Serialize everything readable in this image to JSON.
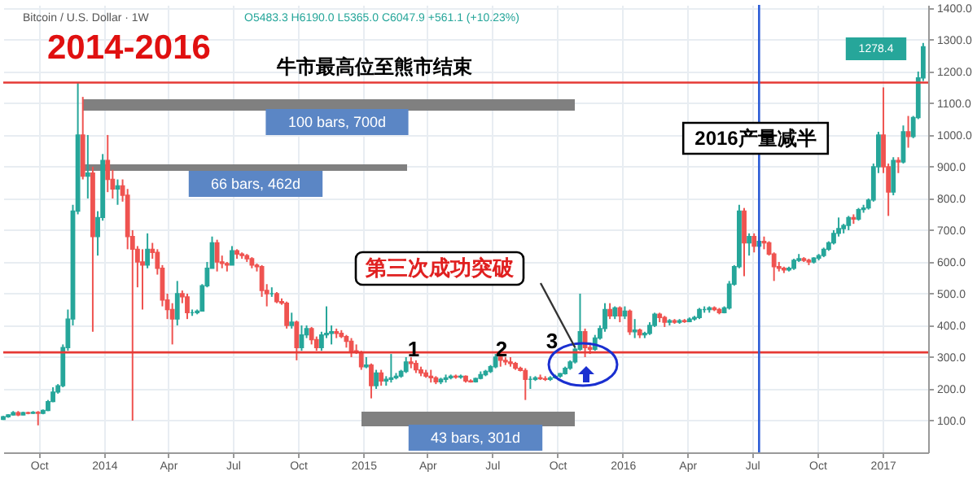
{
  "chart_data": {
    "type": "candlestick",
    "title": "2014-2016",
    "subtitle": "Bitcoin / U.S. Dollar · 1W",
    "colors": [
      "#26a69a",
      "#26a69a",
      "#26a69a",
      "#ef5350",
      "#26a69a",
      "#ef5350",
      "#26a69a",
      "#ef5350",
      "#26a69a",
      "#26a69a",
      "#26a69a",
      "#26a69a",
      "#26a69a",
      "#26a69a",
      "#26a69a",
      "#26a69a",
      "#ef5350",
      "#26a69a",
      "#ef5350",
      "#26a69a",
      "#26a69a",
      "#ef5350",
      "#ef5350",
      "#26a69a",
      "#ef5350",
      "#ef5350",
      "#ef5350",
      "#ef5350",
      "#ef5350",
      "#26a69a",
      "#ef5350",
      "#ef5350",
      "#ef5350",
      "#ef5350",
      "#ef5350",
      "#26a69a",
      "#ef5350",
      "#ef5350",
      "#26a69a",
      "#26a69a",
      "#26a69a",
      "#26a69a",
      "#26a69a",
      "#ef5350",
      "#ef5350",
      "#ef5350",
      "#26a69a",
      "#ef5350",
      "#ef5350",
      "#ef5350",
      "#ef5350",
      "#ef5350",
      "#ef5350",
      "#ef5350",
      "#26a69a",
      "#ef5350",
      "#ef5350",
      "#ef5350",
      "#26a69a",
      "#ef5350",
      "#26a69a",
      "#26a69a",
      "#ef5350",
      "#ef5350",
      "#26a69a",
      "#26a69a",
      "#26a69a",
      "#ef5350",
      "#ef5350",
      "#ef5350",
      "#ef5350",
      "#ef5350",
      "#ef5350",
      "#26a69a",
      "#ef5350",
      "#26a69a",
      "#ef5350",
      "#26a69a",
      "#26a69a",
      "#26a69a",
      "#26a69a",
      "#26a69a",
      "#ef5350",
      "#ef5350",
      "#ef5350",
      "#ef5350",
      "#ef5350",
      "#ef5350",
      "#26a69a",
      "#26a69a",
      "#26a69a",
      "#ef5350",
      "#26a69a",
      "#ef5350",
      "#ef5350",
      "#26a69a",
      "#26a69a",
      "#26a69a",
      "#26a69a",
      "#26a69a",
      "#ef5350",
      "#ef5350",
      "#ef5350",
      "#ef5350",
      "#ef5350",
      "#ef5350",
      "#26a69a",
      "#26a69a",
      "#ef5350",
      "#ef5350",
      "#26a69a",
      "#26a69a",
      "#26a69a",
      "#26a69a",
      "#26a69a",
      "#26a69a",
      "#26a69a",
      "#ef5350",
      "#ef5350",
      "#26a69a",
      "#26a69a",
      "#26a69a",
      "#ef5350",
      "#26a69a",
      "#ef5350",
      "#26a69a",
      "#ef5350",
      "#26a69a",
      "#ef5350",
      "#26a69a",
      "#26a69a",
      "#26a69a",
      "#ef5350",
      "#ef5350",
      "#26a69a",
      "#ef5350",
      "#26a69a",
      "#ef5350",
      "#26a69a",
      "#26a69a",
      "#26a69a",
      "#26a69a",
      "#26a69a",
      "#ef5350",
      "#ef5350",
      "#26a69a",
      "#26a69a",
      "#26a69a",
      "#26a69a",
      "#ef5350",
      "#26a69a",
      "#ef5350",
      "#26a69a",
      "#ef5350",
      "#ef5350",
      "#ef5350",
      "#ef5350",
      "#ef5350",
      "#26a69a",
      "#26a69a",
      "#26a69a",
      "#ef5350",
      "#ef5350",
      "#26a69a",
      "#26a69a",
      "#26a69a",
      "#26a69a",
      "#26a69a",
      "#26a69a",
      "#26a69a",
      "#26a69a",
      "#ef5350",
      "#26a69a",
      "#26a69a",
      "#26a69a",
      "#26a69a",
      "#26a69a",
      "#ef5350",
      "#ef5350",
      "#26a69a",
      "#ef5350",
      "#26a69a",
      "#ef5350",
      "#26a69a",
      "#26a69a",
      "#26a69a"
    ],
    "x": [
      "2013-08-12",
      "2013-08-19",
      "2013-08-26",
      "2013-09-02",
      "2013-09-09",
      "2013-09-16",
      "2013-09-23",
      "2013-09-30",
      "2013-10-07",
      "2013-10-14",
      "2013-10-21",
      "2013-10-28",
      "2013-11-04",
      "2013-11-11",
      "2013-11-18",
      "2013-11-25",
      "2013-12-02",
      "2013-12-09",
      "2013-12-16",
      "2013-12-23",
      "2013-12-30",
      "2014-01-06",
      "2014-01-13",
      "2014-01-20",
      "2014-01-27",
      "2014-02-03",
      "2014-02-10",
      "2014-02-17",
      "2014-02-24",
      "2014-03-03",
      "2014-03-10",
      "2014-03-17",
      "2014-03-24",
      "2014-03-31",
      "2014-04-07",
      "2014-04-14",
      "2014-04-21",
      "2014-04-28",
      "2014-05-05",
      "2014-05-12",
      "2014-05-19",
      "2014-05-26",
      "2014-06-02",
      "2014-06-09",
      "2014-06-16",
      "2014-06-23",
      "2014-06-30",
      "2014-07-07",
      "2014-07-14",
      "2014-07-21",
      "2014-07-28",
      "2014-08-04",
      "2014-08-11",
      "2014-08-18",
      "2014-08-25",
      "2014-09-01",
      "2014-09-08",
      "2014-09-15",
      "2014-09-22",
      "2014-09-29",
      "2014-10-06",
      "2014-10-13",
      "2014-10-20",
      "2014-10-27",
      "2014-11-03",
      "2014-11-10",
      "2014-11-17",
      "2014-11-24",
      "2014-12-01",
      "2014-12-08",
      "2014-12-15",
      "2014-12-22",
      "2014-12-29",
      "2015-01-05",
      "2015-01-12",
      "2015-01-19",
      "2015-01-26",
      "2015-02-02",
      "2015-02-09",
      "2015-02-16",
      "2015-02-23",
      "2015-03-02",
      "2015-03-09",
      "2015-03-16",
      "2015-03-23",
      "2015-03-30",
      "2015-04-06",
      "2015-04-13",
      "2015-04-20",
      "2015-04-27",
      "2015-05-04",
      "2015-05-11",
      "2015-05-18",
      "2015-05-25",
      "2015-06-01",
      "2015-06-08",
      "2015-06-15",
      "2015-06-22",
      "2015-06-29",
      "2015-07-06",
      "2015-07-13",
      "2015-07-20",
      "2015-07-27",
      "2015-08-03",
      "2015-08-10",
      "2015-08-17",
      "2015-08-24",
      "2015-08-31",
      "2015-09-07",
      "2015-09-14",
      "2015-09-21",
      "2015-09-28",
      "2015-10-05",
      "2015-10-12",
      "2015-10-19",
      "2015-10-26",
      "2015-11-02",
      "2015-11-09",
      "2015-11-16",
      "2015-11-23",
      "2015-11-30",
      "2015-12-07",
      "2015-12-14",
      "2015-12-21",
      "2015-12-28",
      "2016-01-04",
      "2016-01-11",
      "2016-01-18",
      "2016-01-25",
      "2016-02-01",
      "2016-02-08",
      "2016-02-15",
      "2016-02-22",
      "2016-02-29",
      "2016-03-07",
      "2016-03-14",
      "2016-03-21",
      "2016-03-28",
      "2016-04-04",
      "2016-04-11",
      "2016-04-18",
      "2016-04-25",
      "2016-05-02",
      "2016-05-09",
      "2016-05-16",
      "2016-05-23",
      "2016-05-30",
      "2016-06-06",
      "2016-06-13",
      "2016-06-20",
      "2016-06-27",
      "2016-07-04",
      "2016-07-11",
      "2016-07-18",
      "2016-07-25",
      "2016-08-01",
      "2016-08-08",
      "2016-08-15",
      "2016-08-22",
      "2016-08-29",
      "2016-09-05",
      "2016-09-12",
      "2016-09-19",
      "2016-09-26",
      "2016-10-03",
      "2016-10-10",
      "2016-10-17",
      "2016-10-24",
      "2016-10-31",
      "2016-11-07",
      "2016-11-14",
      "2016-11-21",
      "2016-11-28",
      "2016-12-05",
      "2016-12-12",
      "2016-12-19",
      "2016-12-26",
      "2017-01-02",
      "2017-01-09",
      "2017-01-16",
      "2017-01-23",
      "2017-01-30",
      "2017-02-06",
      "2017-02-13",
      "2017-02-20",
      "2017-02-27"
    ],
    "ohlc": [
      [
        104,
        115,
        102,
        112
      ],
      [
        112,
        120,
        109,
        118
      ],
      [
        118,
        130,
        116,
        125
      ],
      [
        125,
        130,
        114,
        118
      ],
      [
        118,
        128,
        117,
        125
      ],
      [
        125,
        128,
        120,
        123
      ],
      [
        123,
        130,
        121,
        126
      ],
      [
        126,
        130,
        85,
        123
      ],
      [
        123,
        135,
        120,
        132
      ],
      [
        132,
        165,
        130,
        160
      ],
      [
        160,
        205,
        158,
        190
      ],
      [
        190,
        215,
        185,
        210
      ],
      [
        210,
        340,
        205,
        330
      ],
      [
        330,
        450,
        320,
        420
      ],
      [
        420,
        780,
        400,
        760
      ],
      [
        760,
        1165,
        750,
        1000
      ],
      [
        1000,
        1120,
        860,
        870
      ],
      [
        870,
        1000,
        800,
        880
      ],
      [
        880,
        900,
        380,
        680
      ],
      [
        680,
        760,
        620,
        740
      ],
      [
        740,
        940,
        730,
        920
      ],
      [
        920,
        1000,
        820,
        860
      ],
      [
        860,
        890,
        800,
        830
      ],
      [
        830,
        860,
        780,
        840
      ],
      [
        840,
        860,
        790,
        810
      ],
      [
        810,
        830,
        640,
        680
      ],
      [
        680,
        700,
        100,
        640
      ],
      [
        640,
        650,
        520,
        600
      ],
      [
        600,
        640,
        450,
        590
      ],
      [
        590,
        690,
        580,
        640
      ],
      [
        640,
        660,
        610,
        630
      ],
      [
        630,
        640,
        560,
        580
      ],
      [
        580,
        590,
        460,
        480
      ],
      [
        480,
        500,
        420,
        450
      ],
      [
        450,
        470,
        340,
        420
      ],
      [
        420,
        540,
        400,
        500
      ],
      [
        500,
        510,
        470,
        490
      ],
      [
        490,
        500,
        420,
        440
      ],
      [
        440,
        450,
        430,
        440
      ],
      [
        440,
        450,
        435,
        445
      ],
      [
        445,
        530,
        445,
        525
      ],
      [
        525,
        600,
        520,
        580
      ],
      [
        580,
        680,
        580,
        660
      ],
      [
        660,
        670,
        570,
        600
      ],
      [
        600,
        620,
        580,
        595
      ],
      [
        595,
        600,
        570,
        590
      ],
      [
        590,
        650,
        590,
        635
      ],
      [
        635,
        640,
        610,
        625
      ],
      [
        625,
        630,
        610,
        620
      ],
      [
        620,
        625,
        600,
        610
      ],
      [
        610,
        615,
        580,
        590
      ],
      [
        590,
        595,
        570,
        585
      ],
      [
        585,
        590,
        490,
        510
      ],
      [
        510,
        530,
        460,
        500
      ],
      [
        500,
        520,
        490,
        500
      ],
      [
        500,
        505,
        470,
        475
      ],
      [
        475,
        485,
        465,
        470
      ],
      [
        470,
        475,
        390,
        400
      ],
      [
        400,
        440,
        390,
        410
      ],
      [
        410,
        415,
        290,
        330
      ],
      [
        330,
        400,
        320,
        370
      ],
      [
        370,
        400,
        360,
        390
      ],
      [
        390,
        395,
        340,
        355
      ],
      [
        355,
        365,
        320,
        330
      ],
      [
        330,
        380,
        320,
        370
      ],
      [
        370,
        460,
        360,
        375
      ],
      [
        375,
        400,
        340,
        380
      ],
      [
        380,
        390,
        360,
        375
      ],
      [
        375,
        385,
        360,
        365
      ],
      [
        365,
        370,
        330,
        350
      ],
      [
        350,
        360,
        300,
        320
      ],
      [
        320,
        340,
        310,
        315
      ],
      [
        315,
        320,
        260,
        270
      ],
      [
        270,
        300,
        265,
        275
      ],
      [
        275,
        280,
        170,
        210
      ],
      [
        210,
        260,
        200,
        250
      ],
      [
        250,
        260,
        210,
        225
      ],
      [
        225,
        240,
        210,
        230
      ],
      [
        230,
        310,
        220,
        235
      ],
      [
        235,
        250,
        230,
        240
      ],
      [
        240,
        260,
        235,
        255
      ],
      [
        255,
        300,
        250,
        285
      ],
      [
        285,
        300,
        265,
        280
      ],
      [
        280,
        290,
        250,
        260
      ],
      [
        260,
        270,
        240,
        250
      ],
      [
        250,
        260,
        235,
        240
      ],
      [
        240,
        260,
        220,
        235
      ],
      [
        235,
        240,
        215,
        222
      ],
      [
        222,
        235,
        215,
        230
      ],
      [
        230,
        245,
        220,
        235
      ],
      [
        235,
        245,
        230,
        240
      ],
      [
        240,
        245,
        232,
        237
      ],
      [
        237,
        245,
        232,
        240
      ],
      [
        240,
        242,
        220,
        225
      ],
      [
        225,
        230,
        220,
        222
      ],
      [
        222,
        235,
        220,
        233
      ],
      [
        233,
        255,
        230,
        245
      ],
      [
        245,
        260,
        240,
        255
      ],
      [
        255,
        275,
        250,
        270
      ],
      [
        270,
        310,
        265,
        300
      ],
      [
        300,
        320,
        270,
        290
      ],
      [
        290,
        300,
        275,
        285
      ],
      [
        285,
        300,
        270,
        280
      ],
      [
        280,
        285,
        260,
        265
      ],
      [
        265,
        270,
        255,
        258
      ],
      [
        258,
        265,
        165,
        230
      ],
      [
        230,
        240,
        200,
        230
      ],
      [
        230,
        240,
        225,
        235
      ],
      [
        235,
        245,
        228,
        232
      ],
      [
        232,
        240,
        225,
        230
      ],
      [
        230,
        240,
        225,
        235
      ],
      [
        235,
        245,
        232,
        240
      ],
      [
        240,
        250,
        235,
        248
      ],
      [
        248,
        270,
        245,
        265
      ],
      [
        265,
        290,
        260,
        285
      ],
      [
        285,
        330,
        280,
        325
      ],
      [
        325,
        500,
        320,
        380
      ],
      [
        380,
        390,
        300,
        330
      ],
      [
        330,
        345,
        310,
        325
      ],
      [
        325,
        370,
        320,
        360
      ],
      [
        360,
        400,
        355,
        390
      ],
      [
        390,
        470,
        380,
        450
      ],
      [
        450,
        470,
        420,
        430
      ],
      [
        430,
        460,
        420,
        455
      ],
      [
        455,
        460,
        410,
        430
      ],
      [
        430,
        460,
        420,
        445
      ],
      [
        445,
        450,
        370,
        380
      ],
      [
        380,
        420,
        360,
        385
      ],
      [
        385,
        390,
        360,
        370
      ],
      [
        370,
        380,
        360,
        375
      ],
      [
        375,
        410,
        370,
        400
      ],
      [
        400,
        440,
        395,
        435
      ],
      [
        435,
        440,
        410,
        425
      ],
      [
        425,
        430,
        395,
        410
      ],
      [
        410,
        420,
        400,
        415
      ],
      [
        415,
        420,
        405,
        410
      ],
      [
        410,
        420,
        405,
        415
      ],
      [
        415,
        420,
        408,
        412
      ],
      [
        412,
        425,
        410,
        420
      ],
      [
        420,
        430,
        415,
        425
      ],
      [
        425,
        455,
        420,
        450
      ],
      [
        450,
        460,
        440,
        450
      ],
      [
        450,
        460,
        440,
        455
      ],
      [
        455,
        460,
        445,
        450
      ],
      [
        450,
        455,
        435,
        440
      ],
      [
        440,
        460,
        438,
        455
      ],
      [
        455,
        540,
        450,
        530
      ],
      [
        530,
        590,
        525,
        585
      ],
      [
        585,
        780,
        580,
        760
      ],
      [
        760,
        770,
        555,
        660
      ],
      [
        660,
        690,
        620,
        680
      ],
      [
        680,
        690,
        630,
        650
      ],
      [
        650,
        680,
        645,
        665
      ],
      [
        665,
        680,
        640,
        660
      ],
      [
        660,
        665,
        620,
        625
      ],
      [
        625,
        630,
        540,
        585
      ],
      [
        585,
        600,
        570,
        580
      ],
      [
        580,
        585,
        565,
        575
      ],
      [
        575,
        585,
        570,
        580
      ],
      [
        580,
        610,
        575,
        605
      ],
      [
        605,
        625,
        600,
        610
      ],
      [
        610,
        615,
        600,
        605
      ],
      [
        605,
        610,
        590,
        600
      ],
      [
        600,
        615,
        595,
        612
      ],
      [
        612,
        625,
        605,
        620
      ],
      [
        620,
        645,
        615,
        640
      ],
      [
        640,
        665,
        635,
        660
      ],
      [
        660,
        700,
        655,
        690
      ],
      [
        690,
        740,
        680,
        705
      ],
      [
        705,
        720,
        690,
        715
      ],
      [
        715,
        745,
        700,
        740
      ],
      [
        740,
        750,
        720,
        735
      ],
      [
        735,
        770,
        730,
        765
      ],
      [
        765,
        780,
        755,
        770
      ],
      [
        770,
        800,
        765,
        795
      ],
      [
        795,
        910,
        790,
        900
      ],
      [
        900,
        1010,
        880,
        1000
      ],
      [
        1000,
        1150,
        880,
        900
      ],
      [
        900,
        910,
        745,
        820
      ],
      [
        820,
        930,
        810,
        920
      ],
      [
        920,
        930,
        880,
        915
      ],
      [
        915,
        1030,
        910,
        1010
      ],
      [
        1010,
        1060,
        960,
        995
      ],
      [
        995,
        1060,
        990,
        1055
      ],
      [
        1055,
        1200,
        1050,
        1180
      ],
      [
        1180,
        1290,
        1170,
        1278.4
      ]
    ],
    "xlim": [
      "2013-08-12",
      "2017-03-06"
    ],
    "xticks": [
      {
        "value": "2013-10-01",
        "label": "Oct"
      },
      {
        "value": "2014-01-01",
        "label": "2014"
      },
      {
        "value": "2014-04-01",
        "label": "Apr"
      },
      {
        "value": "2014-07-01",
        "label": "Jul"
      },
      {
        "value": "2014-10-01",
        "label": "Oct"
      },
      {
        "value": "2015-01-01",
        "label": "2015"
      },
      {
        "value": "2015-04-01",
        "label": "Apr"
      },
      {
        "value": "2015-07-01",
        "label": "Jul"
      },
      {
        "value": "2015-10-01",
        "label": "Oct"
      },
      {
        "value": "2016-01-01",
        "label": "2016"
      },
      {
        "value": "2016-04-01",
        "label": "Apr"
      },
      {
        "value": "2016-07-01",
        "label": "Jul"
      },
      {
        "value": "2016-10-01",
        "label": "Oct"
      },
      {
        "value": "2017-01-01",
        "label": "2017"
      }
    ],
    "ylim": [
      0,
      1410
    ],
    "yticks": [
      {
        "value": 100,
        "label": "100.0"
      },
      {
        "value": 200,
        "label": "200.0"
      },
      {
        "value": 300,
        "label": "300.0"
      },
      {
        "value": 400,
        "label": "400.0"
      },
      {
        "value": 500,
        "label": "500.0"
      },
      {
        "value": 600,
        "label": "600.0"
      },
      {
        "value": 700,
        "label": "700.0"
      },
      {
        "value": 800,
        "label": "800.0"
      },
      {
        "value": 900,
        "label": "900.0"
      },
      {
        "value": 1000,
        "label": "1000.0"
      },
      {
        "value": 1100,
        "label": "1100.0"
      },
      {
        "value": 1200,
        "label": "1200.0"
      },
      {
        "value": 1300,
        "label": "1300.0"
      },
      {
        "value": 1400,
        "label": "1400.0"
      }
    ],
    "grid": true,
    "ref_lines": [
      {
        "axis": "y",
        "value": 315,
        "color": "#e53935"
      },
      {
        "axis": "y",
        "value": 1165,
        "color": "#e53935"
      },
      {
        "axis": "x",
        "value": "2016-07-11",
        "color": "#2a5bd7"
      }
    ],
    "annotations": [
      "O5483.3 H6190.0 L5365.0 C6047.9 +561.1 (+10.23%)",
      "牛市最高位至熊市结束",
      "1",
      "2",
      "3",
      {
        "text": "第三次成功突破",
        "x": "2015-10-26",
        "y": 330
      },
      "2016产量减半",
      "1278.4",
      "100 bars, 700d",
      "66 bars, 462d",
      "43 bars, 301d"
    ]
  }
}
